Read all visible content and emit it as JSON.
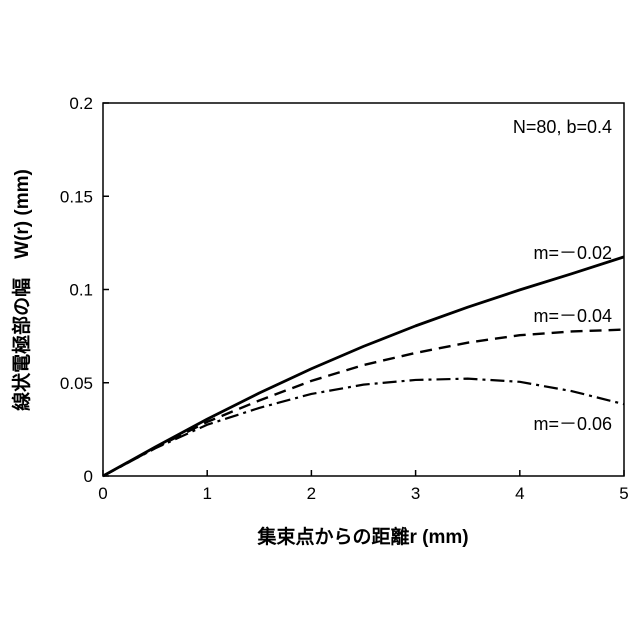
{
  "chart_data": {
    "type": "line",
    "title": "",
    "xlabel": "集束点からの距離r (mm)",
    "ylabel": "線状電極部の幅　W(r) (mm)",
    "xlim": [
      0,
      5
    ],
    "ylim": [
      0,
      0.2
    ],
    "x_ticks": [
      "0",
      "1",
      "2",
      "3",
      "4",
      "5"
    ],
    "y_ticks": [
      "0",
      "0.05",
      "0.1",
      "0.15",
      "0.2"
    ],
    "grid": false,
    "annotation": "N=80, b=0.4",
    "series": [
      {
        "name": "m=－0.02",
        "style": "solid",
        "x": [
          0,
          0.5,
          1,
          1.5,
          2,
          2.5,
          3,
          3.5,
          4,
          4.5,
          5
        ],
        "y": [
          0,
          0.0155,
          0.0305,
          0.0445,
          0.0575,
          0.0695,
          0.0805,
          0.0905,
          0.0998,
          0.1085,
          0.1175
        ]
      },
      {
        "name": "m=－0.04",
        "style": "dashed",
        "x": [
          0,
          0.5,
          1,
          1.5,
          2,
          2.5,
          3,
          3.5,
          4,
          4.5,
          5
        ],
        "y": [
          0,
          0.015,
          0.029,
          0.0405,
          0.051,
          0.0595,
          0.066,
          0.0715,
          0.0755,
          0.0775,
          0.0785
        ]
      },
      {
        "name": "m=－0.06",
        "style": "dash-dot",
        "x": [
          0,
          0.5,
          1,
          1.5,
          2,
          2.5,
          3,
          3.5,
          4,
          4.5,
          5
        ],
        "y": [
          0,
          0.0148,
          0.0275,
          0.0365,
          0.044,
          0.049,
          0.0515,
          0.0522,
          0.0505,
          0.0455,
          0.0385
        ]
      }
    ]
  }
}
